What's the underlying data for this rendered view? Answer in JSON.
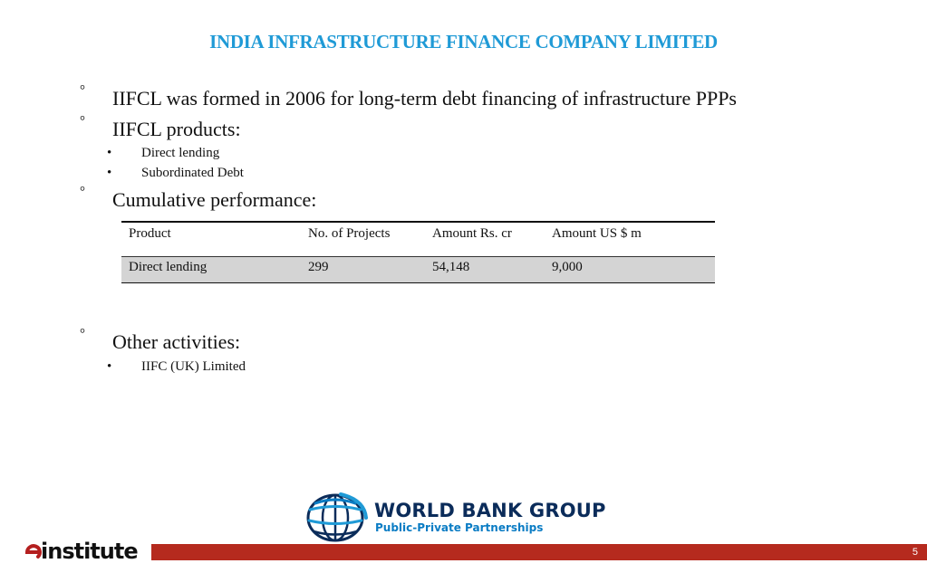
{
  "slide": {
    "title": "INDIA INFRASTRUCTURE FINANCE COMPANY LIMITED",
    "title_color": "#1f9ad6",
    "page_number": "5"
  },
  "bullets": {
    "formed": "IIFCL was formed in 2006 for long-term debt financing of infrastructure PPPs",
    "products": "IIFCL products:",
    "products_items": [
      "Direct lending",
      "Subordinated Debt"
    ],
    "performance": "Cumulative performance:",
    "other": "Other activities:",
    "other_items": [
      "IIFC (UK) Limited"
    ],
    "level1_marker": "°",
    "level2_marker": "•"
  },
  "performance_table": {
    "headers": [
      "Product",
      "No. of Projects",
      "Amount Rs. cr",
      "Amount US $ m"
    ],
    "rows": [
      [
        "Direct lending",
        "299",
        "54,148",
        "9,000"
      ]
    ]
  },
  "logos": {
    "world_bank_name": "WORLD BANK GROUP",
    "world_bank_sub": "Public-Private Partnerships",
    "einstitute": "einstitute",
    "einstitute_e": "e",
    "einstitute_rest": "institute"
  },
  "colors": {
    "footer_bar": "#b52a1e",
    "wb_navy": "#0b2c5a",
    "wb_blue": "#0a7cc4"
  }
}
